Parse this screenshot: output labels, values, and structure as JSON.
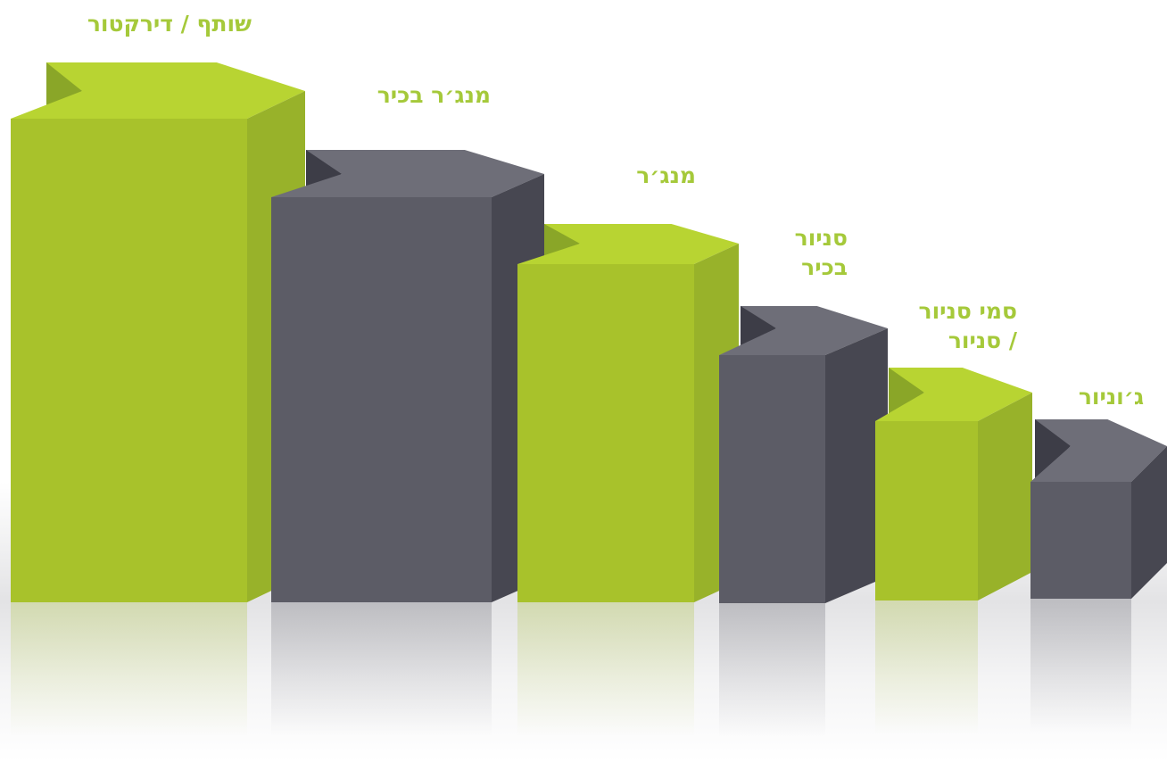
{
  "colors": {
    "green_front": "#a8c22b",
    "green_side": "#98b22a",
    "green_top": "#b8d432",
    "green_notch": "#8aa628",
    "gray_front": "#5c5c66",
    "gray_side": "#474751",
    "gray_top": "#6e6e78",
    "gray_notch": "#3d3d47",
    "label": "#a5c93a"
  },
  "steps": [
    {
      "label": [
        "שותף / דירקטור"
      ],
      "color": "green"
    },
    {
      "label": [
        "מנג׳ר בכיר"
      ],
      "color": "gray"
    },
    {
      "label": [
        "מנג׳ר"
      ],
      "color": "green"
    },
    {
      "label": [
        "סניור",
        "בכיר"
      ],
      "color": "gray"
    },
    {
      "label": [
        "סמי סניור",
        "/ סניור"
      ],
      "color": "green"
    },
    {
      "label": [
        "ג׳וניור"
      ],
      "color": "gray"
    }
  ]
}
